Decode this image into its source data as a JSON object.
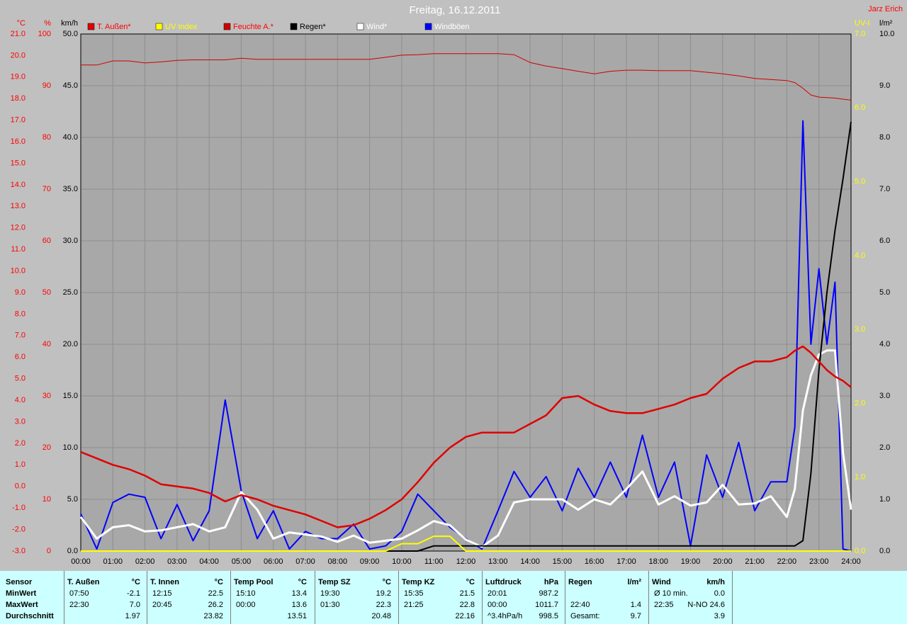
{
  "chart_data": {
    "type": "line",
    "title": "Freitag, 16.12.2011",
    "author": "Jarz Erich",
    "x": [
      0,
      0.5,
      1,
      1.5,
      2,
      2.5,
      3,
      3.5,
      4,
      4.5,
      5,
      5.5,
      6,
      6.5,
      7,
      7.5,
      8,
      8.5,
      9,
      9.5,
      10,
      10.5,
      11,
      11.5,
      12,
      12.5,
      13,
      13.5,
      14,
      14.5,
      15,
      15.5,
      16,
      16.5,
      17,
      17.5,
      18,
      18.5,
      19,
      19.5,
      20,
      20.5,
      21,
      21.5,
      22,
      22.25,
      22.5,
      22.75,
      23,
      23.25,
      23.5,
      23.75,
      24
    ],
    "xlim": [
      0,
      24
    ],
    "xticks": [
      {
        "value": 0,
        "label": "00:00"
      },
      {
        "value": 1,
        "label": "01:00"
      },
      {
        "value": 2,
        "label": "02:00"
      },
      {
        "value": 3,
        "label": "03:00"
      },
      {
        "value": 4,
        "label": "04:00"
      },
      {
        "value": 5,
        "label": "05:00"
      },
      {
        "value": 6,
        "label": "06:00"
      },
      {
        "value": 7,
        "label": "07:00"
      },
      {
        "value": 8,
        "label": "08:00"
      },
      {
        "value": 9,
        "label": "09:00"
      },
      {
        "value": 10,
        "label": "10:00"
      },
      {
        "value": 11,
        "label": "11:00"
      },
      {
        "value": 12,
        "label": "12:00"
      },
      {
        "value": 13,
        "label": "13:00"
      },
      {
        "value": 14,
        "label": "14:00"
      },
      {
        "value": 15,
        "label": "15:00"
      },
      {
        "value": 16,
        "label": "16:00"
      },
      {
        "value": 17,
        "label": "17:00"
      },
      {
        "value": 18,
        "label": "18:00"
      },
      {
        "value": 19,
        "label": "19:00"
      },
      {
        "value": 20,
        "label": "20:00"
      },
      {
        "value": 21,
        "label": "21:00"
      },
      {
        "value": 22,
        "label": "22:00"
      },
      {
        "value": 23,
        "label": "23:00"
      },
      {
        "value": 24,
        "label": "24:00"
      }
    ],
    "grid": true,
    "y_axes": [
      {
        "name": "°C",
        "color": "#ff0000",
        "lim": [
          -3,
          21
        ],
        "ticks": [
          {
            "value": -3,
            "label": "-3.0"
          },
          {
            "value": -2,
            "label": "-2.0"
          },
          {
            "value": -1,
            "label": "-1.0"
          },
          {
            "value": 0,
            "label": "0.0"
          },
          {
            "value": 1,
            "label": "1.0"
          },
          {
            "value": 2,
            "label": "2.0"
          },
          {
            "value": 3,
            "label": "3.0"
          },
          {
            "value": 4,
            "label": "4.0"
          },
          {
            "value": 5,
            "label": "5.0"
          },
          {
            "value": 6,
            "label": "6.0"
          },
          {
            "value": 7,
            "label": "7.0"
          },
          {
            "value": 8,
            "label": "8.0"
          },
          {
            "value": 9,
            "label": "9.0"
          },
          {
            "value": 10,
            "label": "10.0"
          },
          {
            "value": 11,
            "label": "11.0"
          },
          {
            "value": 12,
            "label": "12.0"
          },
          {
            "value": 13,
            "label": "13.0"
          },
          {
            "value": 14,
            "label": "14.0"
          },
          {
            "value": 15,
            "label": "15.0"
          },
          {
            "value": 16,
            "label": "16.0"
          },
          {
            "value": 17,
            "label": "17.0"
          },
          {
            "value": 18,
            "label": "18.0"
          },
          {
            "value": 19,
            "label": "19.0"
          },
          {
            "value": 20,
            "label": "20.0"
          },
          {
            "value": 21,
            "label": "21.0"
          }
        ]
      },
      {
        "name": "%",
        "color": "#ff0000",
        "lim": [
          0,
          100
        ],
        "ticks": [
          0,
          10,
          20,
          30,
          40,
          50,
          60,
          70,
          80,
          90,
          100
        ]
      },
      {
        "name": "km/h",
        "color": "#000000",
        "lim": [
          0,
          50
        ],
        "grid": true,
        "ticks": [
          {
            "value": 0,
            "label": "0.0"
          },
          {
            "value": 5,
            "label": "5.0"
          },
          {
            "value": 10,
            "label": "10.0"
          },
          {
            "value": 15,
            "label": "15.0"
          },
          {
            "value": 20,
            "label": "20.0"
          },
          {
            "value": 25,
            "label": "25.0"
          },
          {
            "value": 30,
            "label": "30.0"
          },
          {
            "value": 35,
            "label": "35.0"
          },
          {
            "value": 40,
            "label": "40.0"
          },
          {
            "value": 45,
            "label": "45.0"
          },
          {
            "value": 50,
            "label": "50.0"
          }
        ]
      },
      {
        "name": "UV-I",
        "color": "#ffff00",
        "lim": [
          0,
          7
        ],
        "ticks": [
          {
            "value": 0,
            "label": "0.0"
          },
          {
            "value": 1,
            "label": "1.0"
          },
          {
            "value": 2,
            "label": "2.0"
          },
          {
            "value": 3,
            "label": "3.0"
          },
          {
            "value": 4,
            "label": "4.0"
          },
          {
            "value": 5,
            "label": "5.0"
          },
          {
            "value": 6,
            "label": "6.0"
          },
          {
            "value": 7,
            "label": "7.0"
          }
        ]
      },
      {
        "name": "l/m²",
        "color": "#000000",
        "lim": [
          0,
          10
        ],
        "ticks": [
          {
            "value": 0,
            "label": "0.0"
          },
          {
            "value": 1,
            "label": "1.0"
          },
          {
            "value": 2,
            "label": "2.0"
          },
          {
            "value": 3,
            "label": "3.0"
          },
          {
            "value": 4,
            "label": "4.0"
          },
          {
            "value": 5,
            "label": "5.0"
          },
          {
            "value": 6,
            "label": "6.0"
          },
          {
            "value": 7,
            "label": "7.0"
          },
          {
            "value": 8,
            "label": "8.0"
          },
          {
            "value": 9,
            "label": "9.0"
          },
          {
            "value": 10,
            "label": "10.0"
          }
        ]
      }
    ],
    "series": [
      {
        "name": "T. Außen*",
        "color": "#e00000",
        "label_color": "#ff0000",
        "axis": 0,
        "values": [
          1.6,
          1.3,
          1.0,
          0.8,
          0.5,
          0.1,
          0.0,
          -0.1,
          -0.3,
          -0.7,
          -0.4,
          -0.6,
          -0.9,
          -1.1,
          -1.3,
          -1.6,
          -1.9,
          -1.8,
          -1.5,
          -1.1,
          -0.6,
          0.2,
          1.1,
          1.8,
          2.3,
          2.5,
          2.5,
          2.5,
          2.9,
          3.3,
          4.1,
          4.2,
          3.8,
          3.5,
          3.4,
          3.4,
          3.6,
          3.8,
          4.1,
          4.3,
          5.0,
          5.5,
          5.8,
          5.8,
          6.0,
          6.3,
          6.5,
          6.2,
          5.8,
          5.4,
          5.1,
          4.9,
          4.6
        ]
      },
      {
        "name": "UV Index",
        "color": "#ffff00",
        "label_color": "#ffff00",
        "axis": 3,
        "values": [
          0,
          0,
          0,
          0,
          0,
          0,
          0,
          0,
          0,
          0,
          0,
          0,
          0,
          0,
          0,
          0,
          0,
          0,
          0,
          0,
          0.1,
          0.1,
          0.2,
          0.2,
          0,
          0,
          0,
          0,
          0,
          0,
          0,
          0,
          0,
          0,
          0,
          0,
          0,
          0,
          0,
          0,
          0,
          0,
          0,
          0,
          0,
          0,
          0,
          0,
          0,
          0,
          0,
          0,
          0
        ]
      },
      {
        "name": "Feuchte A.*",
        "color": "#d00000",
        "label_color": "#ff0000",
        "axis": 1,
        "values": [
          94.0,
          94.0,
          94.8,
          94.8,
          94.4,
          94.6,
          94.9,
          95.0,
          95.0,
          95.0,
          95.3,
          95.1,
          95.1,
          95.1,
          95.1,
          95.1,
          95.1,
          95.1,
          95.1,
          95.5,
          95.9,
          96.0,
          96.2,
          96.2,
          96.2,
          96.2,
          96.2,
          96.0,
          94.5,
          93.8,
          93.3,
          92.8,
          92.3,
          92.8,
          93.0,
          93.0,
          92.9,
          92.9,
          92.9,
          92.6,
          92.3,
          91.9,
          91.4,
          91.2,
          91.0,
          90.6,
          89.5,
          88.2,
          87.8,
          87.7,
          87.6,
          87.4,
          87.2
        ]
      },
      {
        "name": "Regen*",
        "color": "#000000",
        "label_color": "#000000",
        "axis": 4,
        "values": [
          0,
          0,
          0,
          0,
          0,
          0,
          0,
          0,
          0,
          0,
          0,
          0,
          0,
          0,
          0,
          0,
          0,
          0,
          0,
          0,
          0,
          0,
          0.1,
          0.1,
          0.1,
          0.1,
          0.1,
          0.1,
          0.1,
          0.1,
          0.1,
          0.1,
          0.1,
          0.1,
          0.1,
          0.1,
          0.1,
          0.1,
          0.1,
          0.1,
          0.1,
          0.1,
          0.1,
          0.1,
          0.1,
          0.1,
          0.2,
          1.5,
          3.5,
          5.0,
          6.2,
          7.2,
          8.3
        ]
      },
      {
        "name": "Wind*",
        "color": "#ffffff",
        "label_color": "#ffffff",
        "axis": 2,
        "values": [
          3.3,
          1.2,
          2.3,
          2.5,
          1.9,
          2.0,
          2.3,
          2.6,
          1.9,
          2.3,
          5.7,
          4.0,
          1.2,
          1.8,
          1.6,
          1.4,
          0.9,
          1.5,
          0.8,
          1.0,
          1.2,
          2.0,
          2.9,
          2.5,
          1.1,
          0.4,
          1.5,
          4.7,
          5.0,
          5.0,
          5.0,
          4.0,
          5.0,
          4.5,
          6.0,
          7.7,
          4.5,
          5.3,
          4.4,
          4.7,
          6.4,
          4.5,
          4.6,
          5.3,
          3.3,
          6.0,
          13.6,
          17.0,
          19.0,
          19.4,
          19.4,
          9.5,
          4.0
        ]
      },
      {
        "name": "Windböen",
        "color": "#0000ff",
        "label_color": "#ffffff",
        "axis": 2,
        "values": [
          3.6,
          0.2,
          4.7,
          5.5,
          5.2,
          1.2,
          4.5,
          1.0,
          3.9,
          14.6,
          5.8,
          1.2,
          3.9,
          0.2,
          1.9,
          1.2,
          1.2,
          2.6,
          0.2,
          0.5,
          1.9,
          5.5,
          3.9,
          2.3,
          1.2,
          0.2,
          3.9,
          7.7,
          5.2,
          7.2,
          3.9,
          8.0,
          5.2,
          8.6,
          5.2,
          11.2,
          5.2,
          8.6,
          0.5,
          9.3,
          5.2,
          10.5,
          3.9,
          6.7,
          6.7,
          12.0,
          41.6,
          20.0,
          27.3,
          20.0,
          26.0,
          0.2,
          0
        ]
      }
    ]
  },
  "table": {
    "row_labels": [
      "Sensor",
      "MinWert",
      "MaxWert",
      "Durchschnitt"
    ],
    "columns": [
      {
        "name": "T. Außen",
        "unit": "°C",
        "rows": [
          [
            "07:50",
            "-2.1"
          ],
          [
            "22:30",
            "7.0"
          ],
          [
            "1.97"
          ]
        ]
      },
      {
        "name": "T. Innen",
        "unit": "°C",
        "rows": [
          [
            "12:15",
            "22.5"
          ],
          [
            "20:45",
            "26.2"
          ],
          [
            "23.82"
          ]
        ]
      },
      {
        "name": "Temp Pool",
        "unit": "°C",
        "rows": [
          [
            "15:10",
            "13.4"
          ],
          [
            "00:00",
            "13.6"
          ],
          [
            "13.51"
          ]
        ]
      },
      {
        "name": "Temp SZ",
        "unit": "°C",
        "rows": [
          [
            "19:30",
            "19.2"
          ],
          [
            "01:30",
            "22.3"
          ],
          [
            "20.48"
          ]
        ]
      },
      {
        "name": "Temp KZ",
        "unit": "°C",
        "rows": [
          [
            "15:35",
            "21.5"
          ],
          [
            "21:25",
            "22.8"
          ],
          [
            "22.16"
          ]
        ]
      },
      {
        "name": "Luftdruck",
        "unit": "hPa",
        "rows": [
          [
            "20:01",
            "987.2"
          ],
          [
            "00:00",
            "1011.7"
          ],
          [
            "^3.4hPa/h",
            "998.5"
          ]
        ]
      },
      {
        "name": "Regen",
        "unit": "l/m²",
        "rows": [
          [],
          [
            "22:40",
            "1.4"
          ],
          [
            "Gesamt:",
            "9.7"
          ]
        ]
      },
      {
        "name": "Wind",
        "unit": "km/h",
        "rows": [
          [
            "Ø 10 min.",
            "0.0"
          ],
          [
            "22:35",
            "N-NO 24.6"
          ],
          [
            "3.9"
          ]
        ]
      }
    ]
  }
}
